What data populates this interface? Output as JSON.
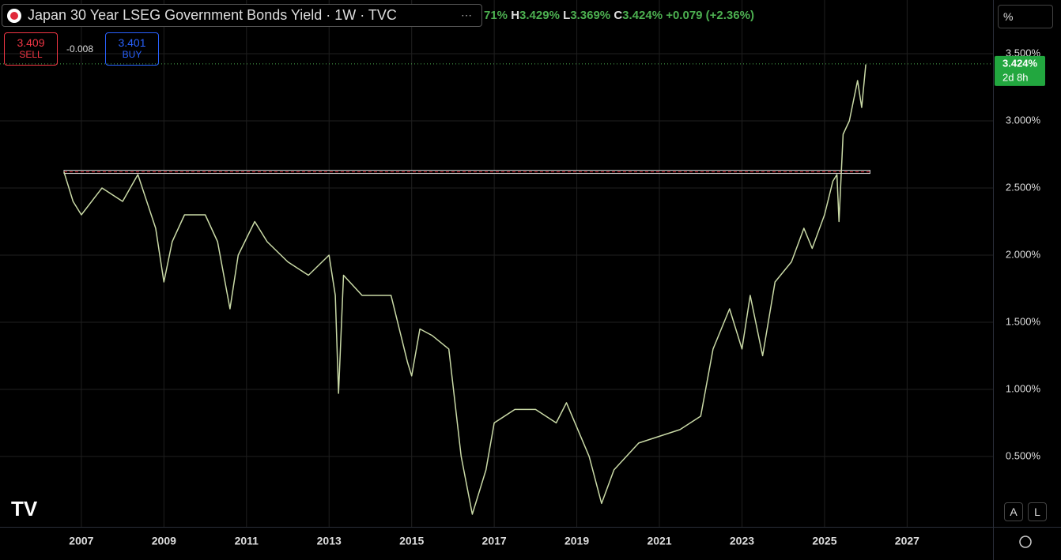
{
  "header": {
    "title": "Japan 30 Year LSEG Government Bonds Yield · 1W · TVC",
    "ohlc": [
      "71%",
      "H",
      "3.429%",
      "L",
      "3.369%",
      "C",
      "3.424%",
      "+0.079 (+2.36%)"
    ],
    "sell": {
      "price": "3.409",
      "label": "SELL"
    },
    "spread": "-0.008",
    "buy": {
      "price": "3.401",
      "label": "BUY"
    },
    "unit": "%",
    "buttons": [
      "A",
      "L"
    ]
  },
  "chart_data": {
    "type": "line",
    "color": "#c9d9a6",
    "x": [
      2006.58,
      2006.8,
      2007.0,
      2007.5,
      2008.0,
      2008.37,
      2008.8,
      2009.0,
      2009.2,
      2009.5,
      2010.0,
      2010.3,
      2010.6,
      2010.8,
      2011.2,
      2011.5,
      2012.0,
      2012.5,
      2013.0,
      2013.15,
      2013.23,
      2013.35,
      2013.8,
      2014.5,
      2014.9,
      2015.0,
      2015.2,
      2015.5,
      2015.9,
      2016.2,
      2016.47,
      2016.8,
      2017.0,
      2017.5,
      2018.0,
      2018.5,
      2018.75,
      2019.3,
      2019.6,
      2019.9,
      2020.5,
      2021.0,
      2021.5,
      2022.0,
      2022.3,
      2022.7,
      2023.0,
      2023.2,
      2023.5,
      2023.8,
      2024.2,
      2024.5,
      2024.7,
      2025.0,
      2025.2,
      2025.3,
      2025.35,
      2025.45,
      2025.6,
      2025.8,
      2025.9,
      2026.0
    ],
    "values": [
      2.62,
      2.4,
      2.3,
      2.5,
      2.4,
      2.6,
      2.2,
      1.8,
      2.1,
      2.3,
      2.3,
      2.1,
      1.6,
      2.0,
      2.25,
      2.1,
      1.95,
      1.85,
      2.0,
      1.7,
      0.97,
      1.85,
      1.7,
      1.7,
      1.2,
      1.1,
      1.45,
      1.4,
      1.3,
      0.5,
      0.07,
      0.4,
      0.75,
      0.85,
      0.85,
      0.75,
      0.9,
      0.5,
      0.15,
      0.4,
      0.6,
      0.65,
      0.7,
      0.8,
      1.3,
      1.6,
      1.3,
      1.7,
      1.25,
      1.8,
      1.95,
      2.2,
      2.05,
      2.3,
      2.55,
      2.6,
      2.25,
      2.9,
      3.0,
      3.3,
      3.1,
      3.42
    ],
    "xlim": [
      2005.03,
      2029.08
    ],
    "ylim": [
      -0.024,
      3.9
    ],
    "xticks": [
      2007,
      2009,
      2011,
      2013,
      2015,
      2017,
      2019,
      2021,
      2023,
      2025,
      2027
    ],
    "yticks": [
      {
        "value": 0.5,
        "label": "0.500%"
      },
      {
        "value": 1.0,
        "label": "1.000%"
      },
      {
        "value": 1.5,
        "label": "1.500%"
      },
      {
        "value": 2.0,
        "label": "2.000%"
      },
      {
        "value": 2.5,
        "label": "2.500%"
      },
      {
        "value": 3.0,
        "label": "3.000%"
      },
      {
        "value": 3.5,
        "label": "3.500%"
      }
    ],
    "grid": true,
    "hline": {
      "value": 2.62,
      "x": [
        2006.58,
        2026.1
      ]
    },
    "last": {
      "value": 3.424,
      "label": "3.424%",
      "countdown": "2d 8h"
    }
  }
}
